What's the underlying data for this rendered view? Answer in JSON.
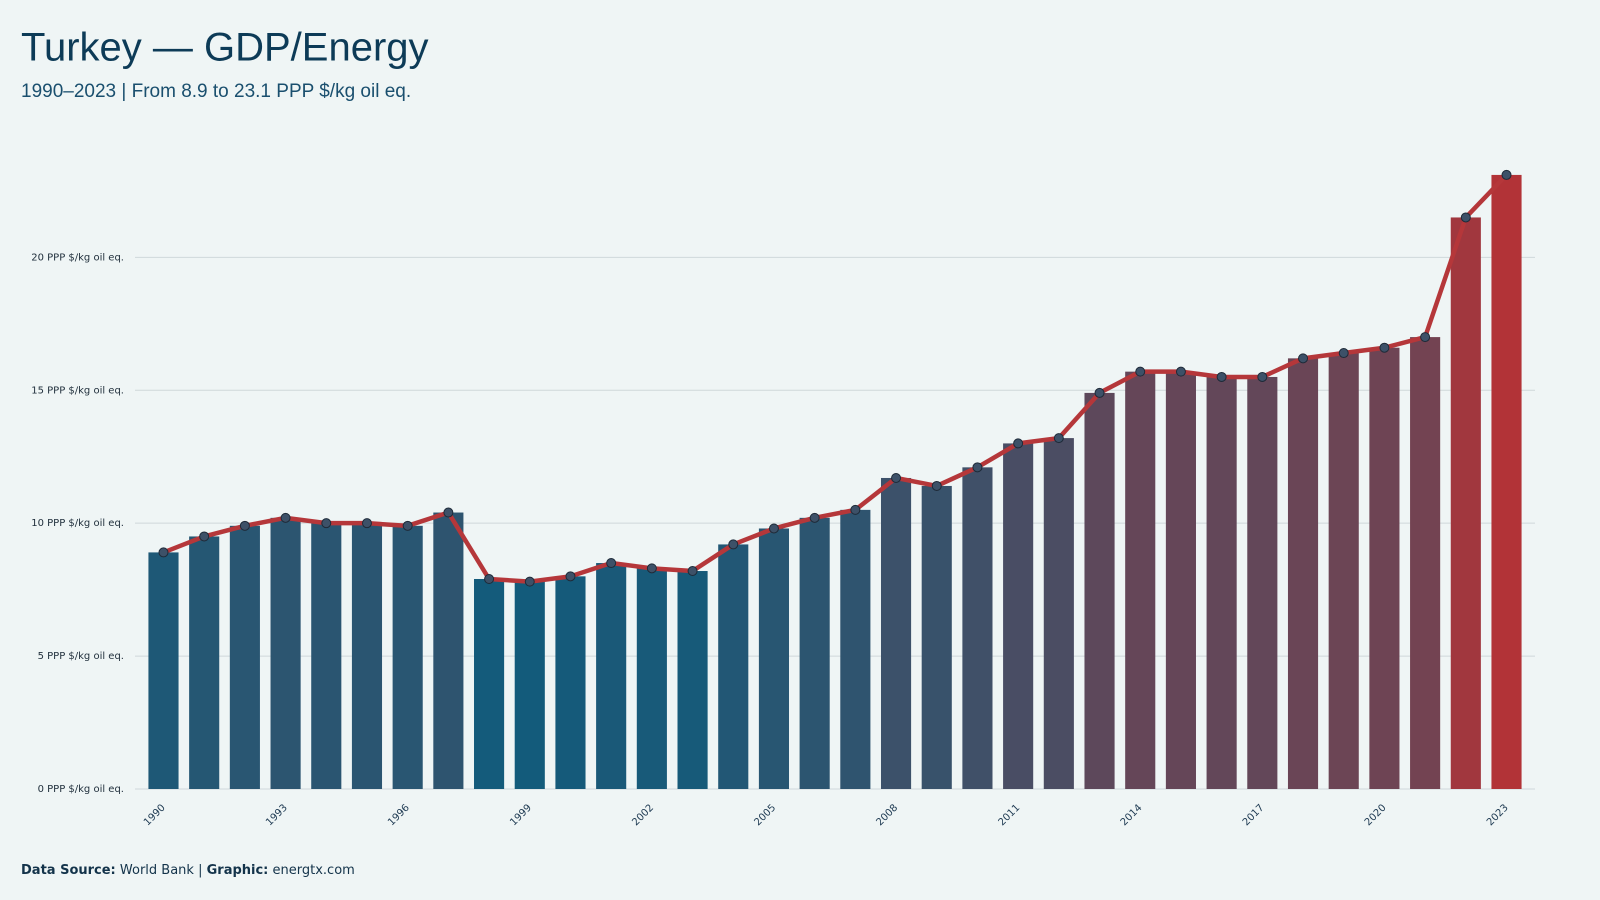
{
  "chart_data": {
    "type": "bar",
    "title": "Turkey — GDP/Energy",
    "subtitle": "1990–2023 | From 8.9 to 23.1 PPP $/kg oil eq.",
    "x": [
      1990,
      1991,
      1992,
      1993,
      1994,
      1995,
      1996,
      1997,
      1998,
      1999,
      2000,
      2001,
      2002,
      2003,
      2004,
      2005,
      2006,
      2007,
      2008,
      2009,
      2010,
      2011,
      2012,
      2013,
      2014,
      2015,
      2016,
      2017,
      2018,
      2019,
      2020,
      2021,
      2022,
      2023
    ],
    "values": [
      8.9,
      9.5,
      9.9,
      10.2,
      10.0,
      10.0,
      9.9,
      10.4,
      7.9,
      7.8,
      8.0,
      8.5,
      8.3,
      8.2,
      9.2,
      9.8,
      10.2,
      10.5,
      11.7,
      11.4,
      12.1,
      13.0,
      13.2,
      14.9,
      15.7,
      15.7,
      15.5,
      15.5,
      16.2,
      16.4,
      16.6,
      17.0,
      21.5,
      23.1
    ],
    "xlim": [
      1989.3,
      2023.7
    ],
    "xticks": [
      1990,
      1993,
      1996,
      1999,
      2002,
      2005,
      2008,
      2011,
      2014,
      2017,
      2020,
      2023
    ],
    "ylim": [
      0,
      24
    ],
    "yticks": [
      {
        "value": 0,
        "label": "0 PPP $/kg oil eq."
      },
      {
        "value": 5,
        "label": "5 PPP $/kg oil eq."
      },
      {
        "value": 10,
        "label": "10 PPP $/kg oil eq."
      },
      {
        "value": 15,
        "label": "15 PPP $/kg oil eq."
      },
      {
        "value": 20,
        "label": "20 PPP $/kg oil eq."
      }
    ],
    "grid": true,
    "color_scale": [
      "#135b7b",
      "#b23337"
    ],
    "overlay_line": true,
    "line_color": "#b5373a",
    "marker_color": "#3d5168",
    "footer": [
      {
        "label": "Data Source:",
        "text": "World Bank |"
      },
      {
        "label": "Graphic:",
        "text": "energtx.com"
      }
    ]
  }
}
